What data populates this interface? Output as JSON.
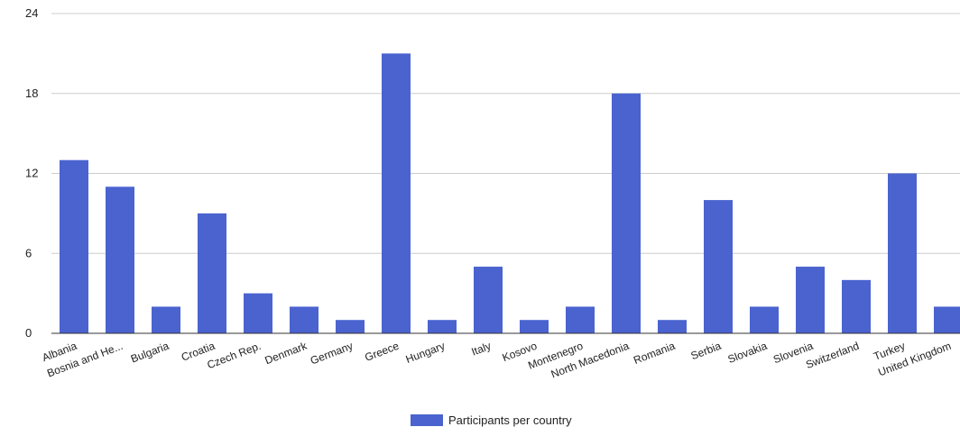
{
  "chart_data": {
    "type": "bar",
    "categories": [
      "Albania",
      "Bosnia and He...",
      "Bulgaria",
      "Croatia",
      "Czech Rep.",
      "Denmark",
      "Germany",
      "Greece",
      "Hungary",
      "Italy",
      "Kosovo",
      "Montenegro",
      "North Macedonia",
      "Romania",
      "Serbia",
      "Slovakia",
      "Slovenia",
      "Switzerland",
      "Turkey",
      "United Kingdom"
    ],
    "series": [
      {
        "name": "Participants per country",
        "values": [
          13,
          11,
          2,
          9,
          3,
          2,
          1,
          21,
          1,
          5,
          1,
          2,
          18,
          1,
          10,
          2,
          5,
          4,
          12,
          2
        ]
      }
    ],
    "yticks": [
      "0",
      "6",
      "12",
      "18",
      "24"
    ],
    "ylim": [
      0,
      24
    ],
    "grid": true,
    "legend_position": "bottom",
    "bar_color": "#4a63cf",
    "grid_color": "#cccccc",
    "baseline_color": "#333333"
  }
}
